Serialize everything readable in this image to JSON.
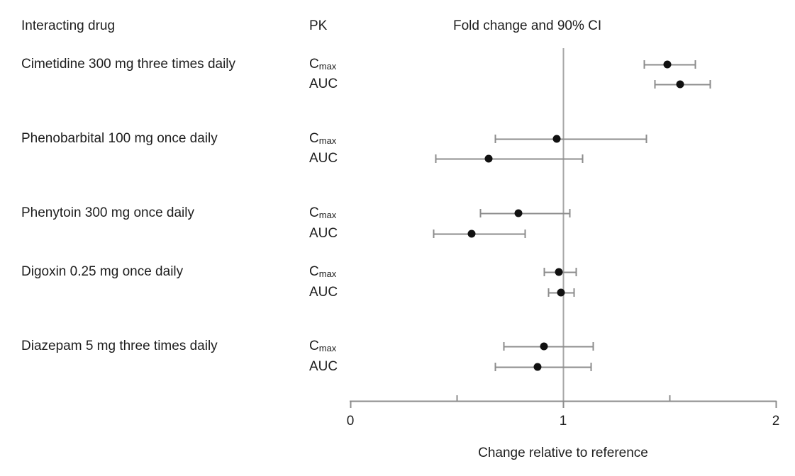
{
  "header": {
    "interacting_drug": "Interacting drug",
    "pk": "PK",
    "plot_title": "Fold change and 90% CI"
  },
  "axis": {
    "tick_labels": [
      "0",
      "1",
      "2"
    ],
    "title": "Change relative to reference"
  },
  "colors": {
    "text": "#1d1d1d",
    "error_bar": "#8c8c8c",
    "marker": "#111111",
    "axis_line": "#8c8c8c",
    "reference_line": "#a6a6a6"
  },
  "chart_data": {
    "type": "scatter",
    "subtype": "forest-plot",
    "title": "Fold change and 90% CI",
    "xlabel": "Change relative to reference",
    "xlim": [
      0,
      2
    ],
    "x_ticks": [
      0,
      1,
      2
    ],
    "x_minor_ticks": [
      0.5,
      1.5
    ],
    "reference_line_x": 1,
    "ci_level": "90% CI",
    "groups": [
      {
        "drug": "Cimetidine 300 mg three times daily",
        "measures": [
          {
            "pk_main": "C",
            "pk_sub": "max",
            "value": 1.49,
            "ci_low": 1.38,
            "ci_high": 1.62
          },
          {
            "pk_main": "AUC",
            "pk_sub": "",
            "value": 1.55,
            "ci_low": 1.43,
            "ci_high": 1.69
          }
        ]
      },
      {
        "drug": "Phenobarbital 100 mg once daily",
        "measures": [
          {
            "pk_main": "C",
            "pk_sub": "max",
            "value": 0.97,
            "ci_low": 0.68,
            "ci_high": 1.39
          },
          {
            "pk_main": "AUC",
            "pk_sub": "",
            "value": 0.65,
            "ci_low": 0.4,
            "ci_high": 1.09
          }
        ]
      },
      {
        "drug": "Phenytoin 300 mg once daily",
        "measures": [
          {
            "pk_main": "C",
            "pk_sub": "max",
            "value": 0.79,
            "ci_low": 0.61,
            "ci_high": 1.03
          },
          {
            "pk_main": "AUC",
            "pk_sub": "",
            "value": 0.57,
            "ci_low": 0.39,
            "ci_high": 0.82
          }
        ]
      },
      {
        "drug": "Digoxin 0.25 mg once daily",
        "measures": [
          {
            "pk_main": "C",
            "pk_sub": "max",
            "value": 0.98,
            "ci_low": 0.91,
            "ci_high": 1.06
          },
          {
            "pk_main": "AUC",
            "pk_sub": "",
            "value": 0.99,
            "ci_low": 0.93,
            "ci_high": 1.05
          }
        ]
      },
      {
        "drug": "Diazepam 5 mg three times daily",
        "measures": [
          {
            "pk_main": "C",
            "pk_sub": "max",
            "value": 0.91,
            "ci_low": 0.72,
            "ci_high": 1.14
          },
          {
            "pk_main": "AUC",
            "pk_sub": "",
            "value": 0.88,
            "ci_low": 0.68,
            "ci_high": 1.13
          }
        ]
      }
    ]
  }
}
